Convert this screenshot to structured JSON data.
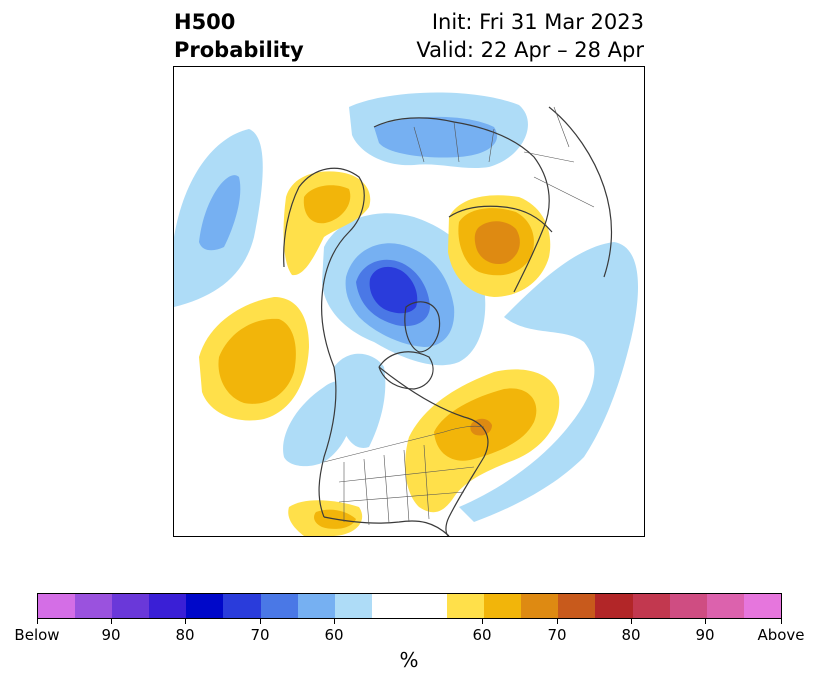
{
  "title": {
    "variable": "H500",
    "product": "Probability",
    "init": "Init: Fri 31 Mar 2023",
    "valid": "Valid: 22 Apr – 28 Apr"
  },
  "colorbar": {
    "unit": "%",
    "below_colors": [
      "#d46ee6",
      "#9a52de",
      "#6a38d9",
      "#3a1fd6",
      "#0008c9",
      "#2a3cdb",
      "#4a78e6",
      "#76b0f2",
      "#aedcf7"
    ],
    "neutral_color": "#ffffff",
    "above_colors": [
      "#ffe04a",
      "#f2b50a",
      "#de8a12",
      "#c85a1c",
      "#b22628",
      "#c2384f",
      "#cf4d82",
      "#dc62ad",
      "#e676dd"
    ],
    "tick_labels": [
      "Below",
      "90",
      "80",
      "70",
      "60",
      "60",
      "70",
      "80",
      "90",
      "Above"
    ]
  },
  "map": {
    "projection": "North Polar Stereographic",
    "land_outline_color": "#3a3a3a",
    "anomaly_features": [
      {
        "name": "arctic-below",
        "category": "below",
        "max_level": "80"
      },
      {
        "name": "siberia-above",
        "category": "above",
        "max_level": "70"
      },
      {
        "name": "eastern-na-above",
        "category": "above",
        "max_level": "70"
      },
      {
        "name": "north-pacific-above",
        "category": "above",
        "max_level": "60"
      },
      {
        "name": "alaska-above",
        "category": "above",
        "max_level": "60"
      },
      {
        "name": "eurasia-below",
        "category": "below",
        "max_level": "60"
      },
      {
        "name": "west-atlantic-below",
        "category": "below",
        "max_level": "60"
      }
    ]
  }
}
